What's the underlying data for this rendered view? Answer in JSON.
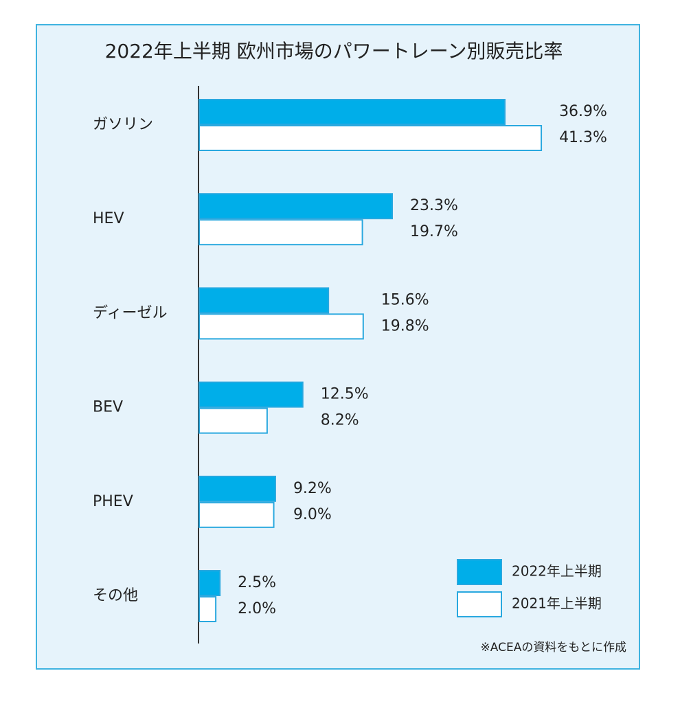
{
  "chart_data": {
    "type": "bar",
    "orientation": "horizontal",
    "title": "2022年上半期 欧州市場のパワートレーン別販売比率",
    "categories": [
      "ガソリン",
      "HEV",
      "ディーゼル",
      "BEV",
      "PHEV",
      "その他"
    ],
    "series": [
      {
        "name": "2022年上半期",
        "color": "#00aee9",
        "values": [
          36.9,
          23.3,
          15.6,
          12.5,
          9.2,
          2.5
        ],
        "value_labels": [
          "36.9%",
          "23.3%",
          "15.6%",
          "12.5%",
          "9.2%",
          "2.5%"
        ]
      },
      {
        "name": "2021年上半期",
        "color": "#ffffff",
        "values": [
          41.3,
          19.7,
          19.8,
          8.2,
          9.0,
          2.0
        ],
        "value_labels": [
          "41.3%",
          "19.7%",
          "19.8%",
          "8.2%",
          "9.0%",
          "2.0%"
        ]
      }
    ],
    "edge_color": "#29a8df",
    "note": "※ACEAの資料をもとに作成"
  }
}
